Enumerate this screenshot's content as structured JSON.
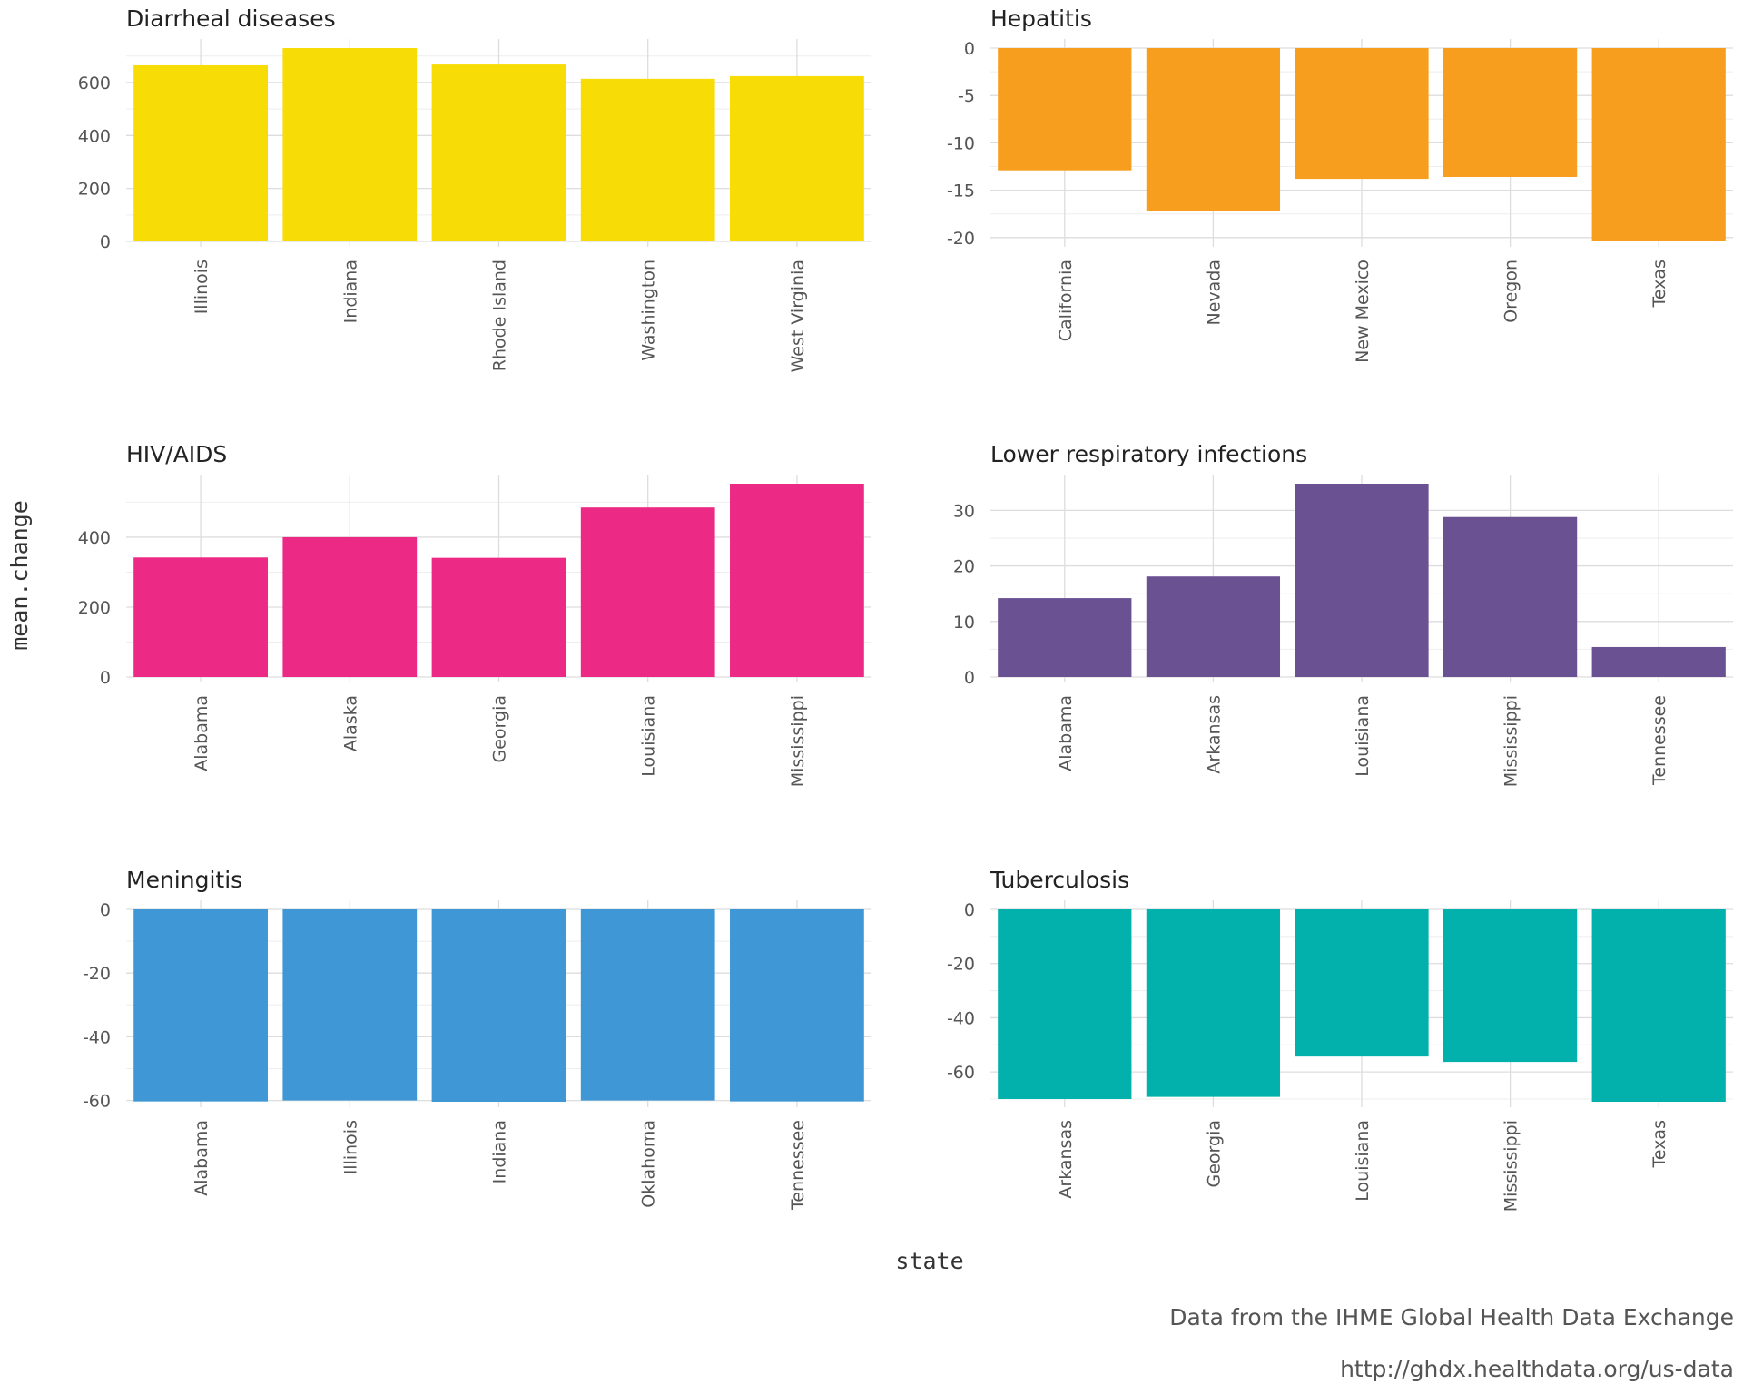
{
  "chart_data": [
    {
      "type": "bar",
      "title": "Diarrheal diseases",
      "color": "#F7DC05",
      "categories": [
        "Illinois",
        "Indiana",
        "Rhode Island",
        "Washington",
        "West Virginia"
      ],
      "values": [
        665,
        730,
        668,
        614,
        624
      ],
      "ylim": [
        0,
        730
      ],
      "yticks": [
        0,
        200,
        400,
        600
      ]
    },
    {
      "type": "bar",
      "title": "Hepatitis",
      "color": "#F89E1E",
      "categories": [
        "California",
        "Nevada",
        "New Mexico",
        "Oregon",
        "Texas"
      ],
      "values": [
        -12.9,
        -17.2,
        -13.8,
        -13.6,
        -20.4
      ],
      "ylim": [
        -20.4,
        0
      ],
      "yticks": [
        -20,
        -15,
        -10,
        -5,
        0
      ]
    },
    {
      "type": "bar",
      "title": "HIV/AIDS",
      "color": "#EC2A85",
      "categories": [
        "Alabama",
        "Alaska",
        "Georgia",
        "Louisiana",
        "Mississippi"
      ],
      "values": [
        342,
        400,
        341,
        485,
        553
      ],
      "ylim": [
        0,
        553
      ],
      "yticks": [
        0,
        200,
        400
      ]
    },
    {
      "type": "bar",
      "title": "Lower respiratory infections",
      "color": "#6A5192",
      "categories": [
        "Alabama",
        "Arkansas",
        "Louisiana",
        "Mississippi",
        "Tennessee"
      ],
      "values": [
        14.2,
        18.1,
        34.8,
        28.8,
        5.4
      ],
      "ylim": [
        0,
        34.8
      ],
      "yticks": [
        0,
        10,
        20,
        30
      ]
    },
    {
      "type": "bar",
      "title": "Meningitis",
      "color": "#3F98D5",
      "categories": [
        "Alabama",
        "Illinois",
        "Indiana",
        "Oklahoma",
        "Tennessee"
      ],
      "values": [
        -60.3,
        -60.0,
        -60.4,
        -60.0,
        -60.3
      ],
      "ylim": [
        -60.4,
        0
      ],
      "yticks": [
        -60,
        -40,
        -20,
        0
      ]
    },
    {
      "type": "bar",
      "title": "Tuberculosis",
      "color": "#02B0AC",
      "categories": [
        "Arkansas",
        "Georgia",
        "Louisiana",
        "Mississippi",
        "Texas"
      ],
      "values": [
        -70.0,
        -69.2,
        -54.3,
        -56.3,
        -71.0
      ],
      "ylim": [
        -71.0,
        0
      ],
      "yticks": [
        -60,
        -40,
        -20,
        0
      ]
    }
  ],
  "xlabel": "state",
  "ylabel": "mean.change",
  "caption_line1": "Data from the IHME Global Health Data Exchange",
  "caption_line2": "http://ghdx.healthdata.org/us-data"
}
